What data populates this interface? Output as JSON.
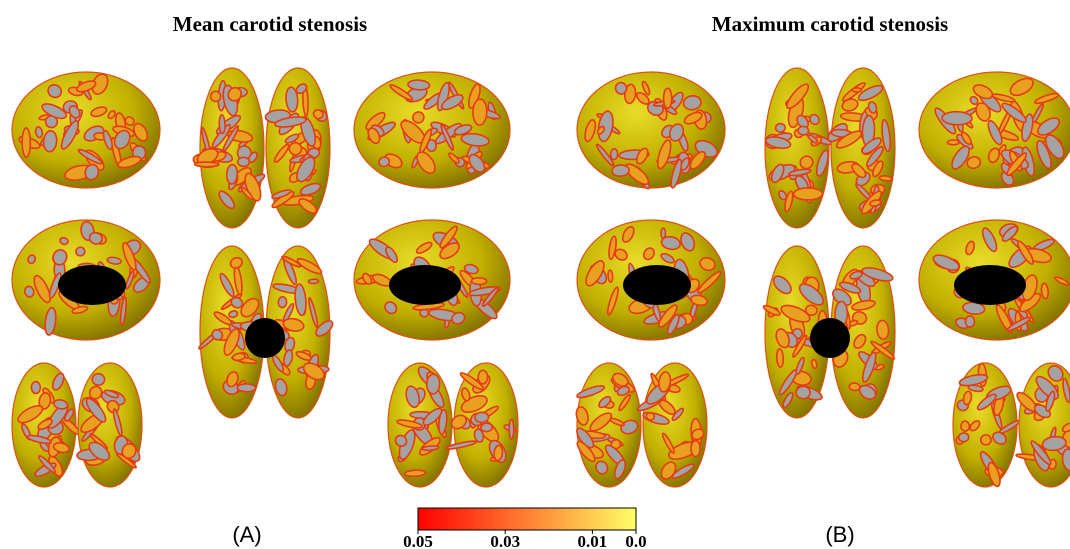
{
  "panels": [
    {
      "title": "Mean carotid stenosis",
      "label": "(A)"
    },
    {
      "title": "Maximum carotid stenosis",
      "label": "(B)"
    }
  ],
  "colorbar": {
    "lim": [
      0.05,
      0
    ],
    "ticks": [
      0.05,
      0.03,
      0.01,
      {
        "value": 0,
        "label": "0.0"
      }
    ],
    "colors": [
      "#ff0000",
      "#ffff66"
    ]
  }
}
